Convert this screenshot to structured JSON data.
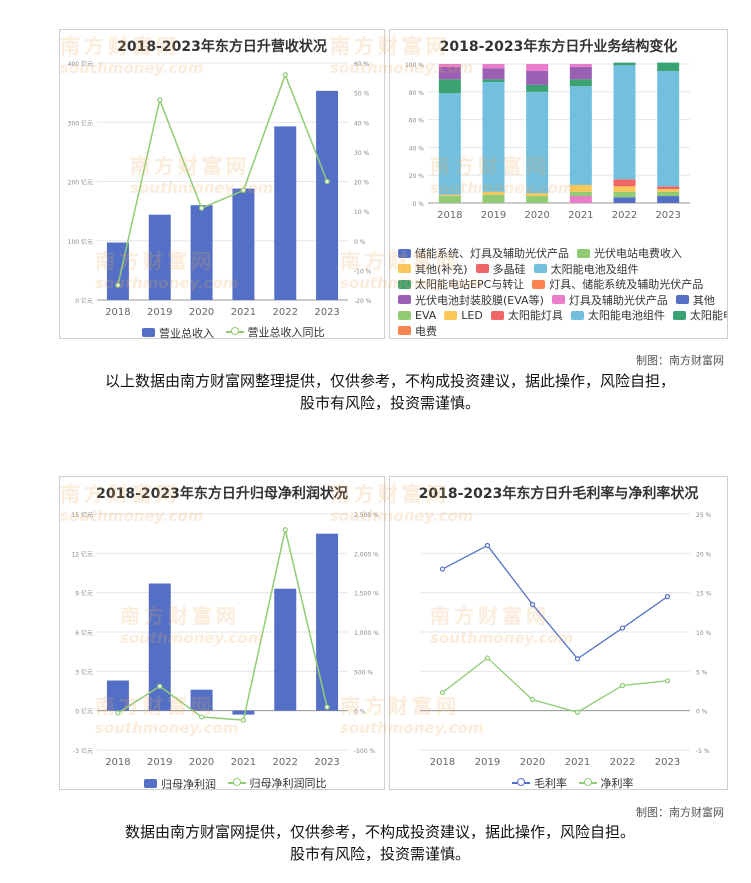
{
  "chart_data": [
    {
      "type": "bar",
      "title": "2018-2023年东方日升营收状况",
      "categories": [
        "2018",
        "2019",
        "2020",
        "2021",
        "2022",
        "2023"
      ],
      "series": [
        {
          "name": "营业总收入",
          "type": "bar",
          "axis": "left",
          "values": [
            97,
            144,
            160,
            188,
            293,
            353
          ]
        },
        {
          "name": "营业总收入同比",
          "type": "line",
          "axis": "right",
          "values": [
            -15,
            47.5,
            11,
            17,
            56,
            20
          ]
        }
      ],
      "y_left": {
        "ticks": [
          "0 亿元",
          "100 亿元",
          "200 亿元",
          "300 亿元",
          "400 亿元"
        ],
        "ylim": [
          0,
          400
        ]
      },
      "y_right": {
        "ticks": [
          "-20 %",
          "-10 %",
          "0 %",
          "10 %",
          "20 %",
          "30 %",
          "40 %",
          "50 %",
          "60 %"
        ],
        "ylim": [
          -20,
          60
        ]
      },
      "colors": {
        "bar": "#5470c6",
        "line": "#91cc75"
      },
      "grid": true,
      "legend_position": "bottom"
    },
    {
      "type": "bar",
      "stacked": true,
      "title": "2018-2023年东方日升业务结构变化",
      "categories": [
        "2018",
        "2019",
        "2020",
        "2021",
        "2022",
        "2023"
      ],
      "y_ticks": [
        "0 %",
        "20 %",
        "40 %",
        "60 %",
        "80 %",
        "100 %"
      ],
      "ylim": [
        0,
        100
      ],
      "series": [
        {
          "name": "储能系统、灯具及辅助光伏产品",
          "color": "#5470c6",
          "values": [
            0,
            0,
            0,
            0,
            4,
            0
          ]
        },
        {
          "name": "光伏电站电费收入",
          "color": "#91cc75",
          "values": [
            0,
            0,
            0,
            0,
            0,
            0
          ]
        },
        {
          "name": "其他(补充)",
          "color": "#fac858",
          "values": [
            0,
            0,
            0,
            0,
            0,
            0
          ]
        },
        {
          "name": "多晶硅",
          "color": "#ee6666",
          "values": [
            0,
            0,
            0,
            0,
            0,
            0
          ]
        },
        {
          "name": "太阳能电池及组件",
          "color": "#73c0de",
          "values": [
            0,
            0,
            0,
            0,
            0,
            0
          ]
        },
        {
          "name": "太阳能电站EPC与转让",
          "color": "#3ba272",
          "values": [
            0,
            0,
            0,
            0,
            0,
            0
          ]
        },
        {
          "name": "灯具、储能系统及辅助光伏产品",
          "color": "#fc8452",
          "values": [
            0,
            0,
            0,
            0,
            0,
            0
          ]
        },
        {
          "name": "光伏电池封装胶膜(EVA等)",
          "color": "#9a60b4",
          "values": [
            0,
            0,
            0,
            0,
            0,
            0
          ]
        },
        {
          "name": "灯具及辅助光伏产品",
          "color": "#ea7ccc",
          "values": [
            0,
            0,
            0,
            5,
            0,
            0
          ]
        },
        {
          "name": "其他",
          "color": "#5470c6",
          "values": [
            0,
            0,
            0,
            0,
            0,
            5
          ]
        },
        {
          "name": "EVA",
          "color": "#91cc75",
          "values": [
            5,
            6,
            5,
            3,
            4,
            3
          ]
        },
        {
          "name": "LED",
          "color": "#fac858",
          "values": [
            1,
            2,
            2,
            5,
            4,
            2
          ]
        },
        {
          "name": "太阳能灯具",
          "color": "#ee6666",
          "values": [
            0,
            0,
            0,
            0,
            5,
            2
          ]
        },
        {
          "name": "太阳能电池组件",
          "color": "#73c0de",
          "values": [
            73,
            79,
            73,
            71,
            82,
            83
          ]
        },
        {
          "name": "太阳能电站",
          "color": "#3ba272",
          "values": [
            10,
            2,
            5,
            5,
            2,
            6
          ]
        },
        {
          "name": "电费",
          "color": "#fc8452",
          "values": [
            0,
            0,
            0,
            0,
            0,
            0
          ]
        },
        {
          "name": "光伏电池封装胶膜(EVA等)",
          "color": "#9a60b4",
          "values": [
            9,
            8,
            10,
            9,
            0,
            0
          ],
          "legend": false
        },
        {
          "name": "灯具及辅助光伏产品",
          "color": "#ea7ccc",
          "values": [
            2,
            3,
            5,
            2,
            0,
            0
          ],
          "legend": false
        },
        {
          "name": "其他",
          "color": "#3ba272",
          "values": [
            0,
            0,
            0,
            0,
            0,
            0
          ],
          "legend": false
        }
      ],
      "legend_position": "bottom"
    },
    {
      "type": "bar",
      "title": "2018-2023年东方日升归母净利润状况",
      "categories": [
        "2018",
        "2019",
        "2020",
        "2021",
        "2022",
        "2023"
      ],
      "series": [
        {
          "name": "归母净利润",
          "type": "bar",
          "axis": "left",
          "values": [
            2.3,
            9.7,
            1.6,
            -0.3,
            9.3,
            13.5
          ]
        },
        {
          "name": "归母净利润同比",
          "type": "line",
          "axis": "right",
          "values": [
            -30,
            310,
            -80,
            -120,
            2300,
            45
          ]
        }
      ],
      "y_left": {
        "ticks": [
          "-3 亿元",
          "0 亿元",
          "3 亿元",
          "6 亿元",
          "9 亿元",
          "12 亿元",
          "15 亿元"
        ],
        "ylim": [
          -3,
          15
        ]
      },
      "y_right": {
        "ticks": [
          "-500 %",
          "0 %",
          "500 %",
          "1,000 %",
          "1,500 %",
          "2,000 %",
          "2,500 %"
        ],
        "ylim": [
          -500,
          2500
        ]
      },
      "colors": {
        "bar": "#5470c6",
        "line": "#91cc75"
      },
      "grid": true,
      "legend_position": "bottom"
    },
    {
      "type": "line",
      "title": "2018-2023年东方日升毛利率与净利率状况",
      "categories": [
        "2018",
        "2019",
        "2020",
        "2021",
        "2022",
        "2023"
      ],
      "series": [
        {
          "name": "毛利率",
          "color": "#5470c6",
          "values": [
            18,
            21,
            13.5,
            6.6,
            10.5,
            14.5
          ]
        },
        {
          "name": "净利率",
          "color": "#91cc75",
          "values": [
            2.3,
            6.7,
            1.4,
            -0.2,
            3.2,
            3.8
          ]
        }
      ],
      "y_ticks": [
        "-5 %",
        "0 %",
        "5 %",
        "10 %",
        "15 %",
        "20 %",
        "25 %"
      ],
      "ylim": [
        -5,
        25
      ],
      "grid": true,
      "legend_position": "bottom"
    }
  ],
  "watermark": {
    "cn": "南方财富网",
    "en": "southmoney.com"
  },
  "footer1": {
    "maker": "制图：南方财富网",
    "caption": "以上数据由南方财富网整理提供，仅供参考，不构成投资建议，据此操作，风险自担，股市有风险，投资需谨慎。"
  },
  "footer2": {
    "maker": "制图：南方财富网",
    "caption_line1": "数据由南方财富网提供，仅供参考，不构成投资建议，据此操作，风险自担。",
    "caption_line2": "股市有风险，投资需谨慎。"
  }
}
